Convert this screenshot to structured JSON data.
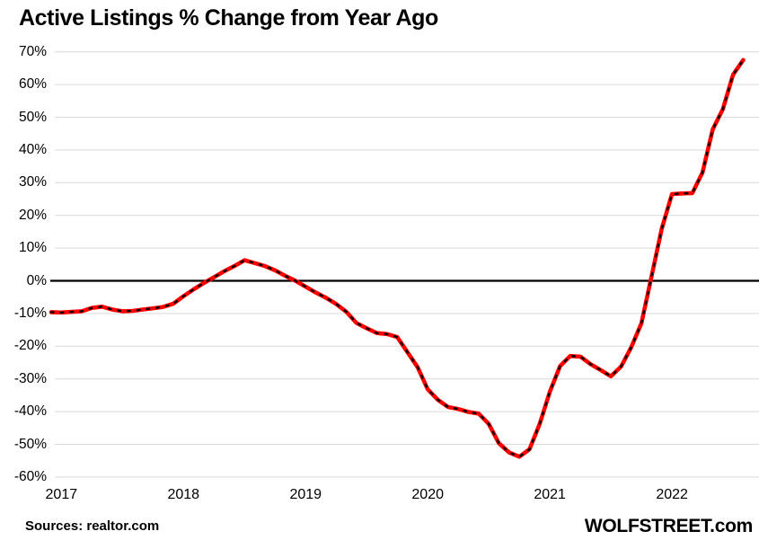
{
  "title": "Active Listings % Change from Year Ago",
  "footer": {
    "sources": "Sources: realtor.com",
    "watermark": "WOLFSTREET.com"
  },
  "colors": {
    "background": "#ffffff",
    "text": "#000000",
    "gridline": "#d9d9d9",
    "zero_line": "#000000",
    "line_red": "#fe0000",
    "line_dash_overlay": "#000000"
  },
  "chart_data": {
    "type": "line",
    "title": "Active Listings % Change from Year Ago",
    "xlabel": "",
    "ylabel": "",
    "ylim": [
      -60,
      70
    ],
    "ytick_step": 10,
    "ytick_format": "percent",
    "y_ticks": [
      70,
      60,
      50,
      40,
      30,
      20,
      10,
      0,
      -10,
      -20,
      -30,
      -40,
      -50,
      -60
    ],
    "x_tick_labels": [
      "2017",
      "2018",
      "2019",
      "2020",
      "2021",
      "2022"
    ],
    "grid": "horizontal-only",
    "zero_line": true,
    "legend": "none",
    "line_style": "thick red line with short black dash (dot) overlay",
    "frequency": "monthly",
    "series_name": "Active listings % change year-over-year",
    "months": [
      "2016-12",
      "2017-01",
      "2017-02",
      "2017-03",
      "2017-04",
      "2017-05",
      "2017-06",
      "2017-07",
      "2017-08",
      "2017-09",
      "2017-10",
      "2017-11",
      "2017-12",
      "2018-01",
      "2018-02",
      "2018-03",
      "2018-04",
      "2018-05",
      "2018-06",
      "2018-07",
      "2018-08",
      "2018-09",
      "2018-10",
      "2018-11",
      "2018-12",
      "2019-01",
      "2019-02",
      "2019-03",
      "2019-04",
      "2019-05",
      "2019-06",
      "2019-07",
      "2019-08",
      "2019-09",
      "2019-10",
      "2019-11",
      "2019-12",
      "2020-01",
      "2020-02",
      "2020-03",
      "2020-04",
      "2020-05",
      "2020-06",
      "2020-07",
      "2020-08",
      "2020-09",
      "2020-10",
      "2020-11",
      "2020-12",
      "2021-01",
      "2021-02",
      "2021-03",
      "2021-04",
      "2021-05",
      "2021-06",
      "2021-07",
      "2021-08",
      "2021-09",
      "2021-10",
      "2021-11",
      "2021-12",
      "2022-01",
      "2022-02",
      "2022-03",
      "2022-04",
      "2022-05",
      "2022-06",
      "2022-07",
      "2022-08"
    ],
    "values": [
      -9.6,
      -9.7,
      -9.5,
      -9.3,
      -8.3,
      -7.9,
      -8.8,
      -9.3,
      -9.2,
      -8.8,
      -8.4,
      -8.0,
      -7.0,
      -4.7,
      -2.6,
      -0.7,
      1.1,
      2.9,
      4.5,
      6.3,
      5.4,
      4.5,
      3.2,
      1.5,
      0.0,
      -1.8,
      -3.6,
      -5.2,
      -7.1,
      -9.5,
      -12.9,
      -14.5,
      -16.0,
      -16.3,
      -17.2,
      -21.8,
      -26.4,
      -33.2,
      -36.4,
      -38.6,
      -39.2,
      -40.1,
      -40.6,
      -43.8,
      -49.7,
      -52.5,
      -53.8,
      -51.5,
      -43.8,
      -33.9,
      -26.1,
      -23.0,
      -23.2,
      -25.5,
      -27.3,
      -29.2,
      -26.2,
      -20.3,
      -13.0,
      1.5,
      16.0,
      26.5,
      26.7,
      26.8,
      33.1,
      46.3,
      52.5,
      63.0,
      67.5
    ]
  }
}
